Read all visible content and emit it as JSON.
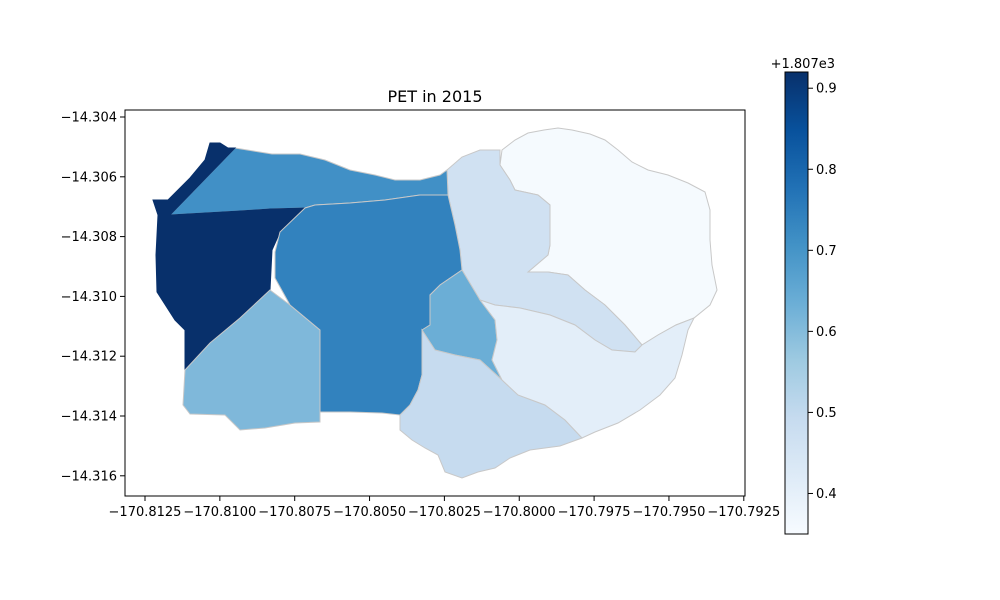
{
  "chart_data": {
    "type": "choropleth",
    "title": "PET in 2015",
    "x_ticks": [
      "−170.8125",
      "−170.8100",
      "−170.8075",
      "−170.8050",
      "−170.8025",
      "−170.8000",
      "−170.7975",
      "−170.7950",
      "−170.7925"
    ],
    "y_ticks": [
      "−14.304",
      "−14.306",
      "−14.308",
      "−14.310",
      "−14.312",
      "−14.314",
      "−14.316"
    ],
    "colorbar": {
      "offset_label": "+1.807e3",
      "ticks": [
        "0.9",
        "0.8",
        "0.7",
        "0.6",
        "0.5",
        "0.4"
      ],
      "range": [
        0.35,
        0.92
      ],
      "colormap": "Blues"
    },
    "regions": [
      {
        "name": "northwest-wedge",
        "value": 0.92,
        "color": "#08306b"
      },
      {
        "name": "west-block",
        "value": 0.92,
        "color": "#08306b"
      },
      {
        "name": "north-strip",
        "value": 0.71,
        "color": "#4190c6"
      },
      {
        "name": "central",
        "value": 0.76,
        "color": "#3282be"
      },
      {
        "name": "southwest",
        "value": 0.58,
        "color": "#7fb8da"
      },
      {
        "name": "center-east-small",
        "value": 0.62,
        "color": "#6baed6"
      },
      {
        "name": "north-center",
        "value": 0.5,
        "color": "#d0e1f2"
      },
      {
        "name": "south-center",
        "value": 0.52,
        "color": "#c6dbef"
      },
      {
        "name": "southeast",
        "value": 0.42,
        "color": "#e3eef9"
      },
      {
        "name": "northeast",
        "value": 0.37,
        "color": "#f5fafe"
      }
    ]
  }
}
